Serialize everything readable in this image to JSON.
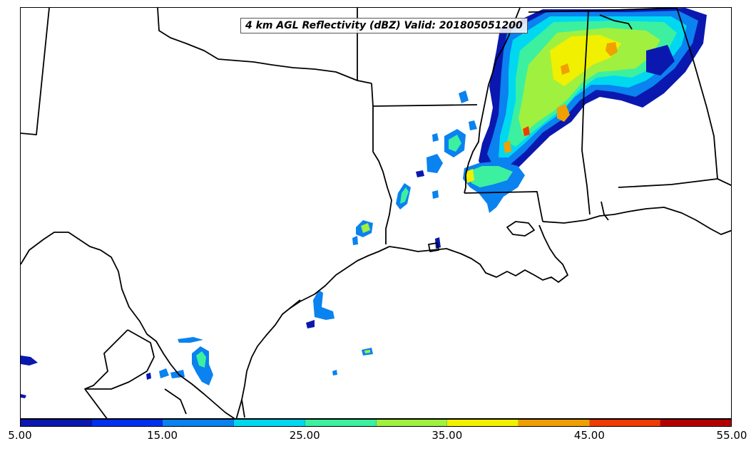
{
  "title": "4 km AGL Reflectivity (dBZ) Valid: 201805051200",
  "colorbar": {
    "ticks": [
      "5.00",
      "15.00",
      "25.00",
      "35.00",
      "45.00",
      "55.00"
    ],
    "tick_values": [
      5,
      15,
      25,
      35,
      45,
      55
    ],
    "min": 5,
    "max": 55,
    "colors": [
      "#0a18b0",
      "#0030f0",
      "#0a82f0",
      "#00d8f0",
      "#3cf0a0",
      "#a0f040",
      "#f0f000",
      "#f0a000",
      "#f03c00",
      "#b40000"
    ]
  },
  "map": {
    "region": "Texas / Louisiana / Gulf Coast",
    "field": "reflectivity",
    "units": "dBZ"
  }
}
